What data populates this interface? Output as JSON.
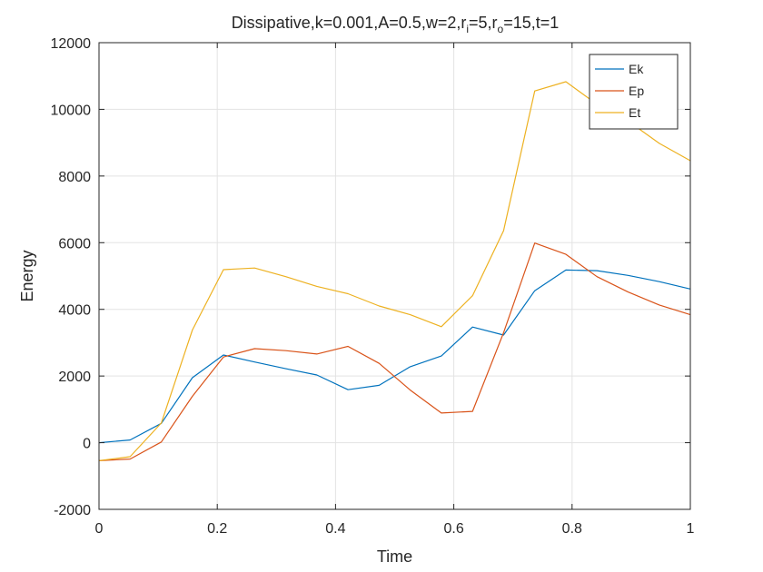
{
  "chart_data": {
    "type": "line",
    "title": "Dissipative,k=0.001,A=0.5,w=2,r_i=5,r_o=15,t=1",
    "title_parts": [
      "Dissipative,k=0.001,A=0.5,w=2,r",
      "i",
      "=5,r",
      "o",
      "=15,t=1"
    ],
    "xlabel": "Time",
    "ylabel": "Energy",
    "xlim": [
      0,
      1
    ],
    "ylim": [
      -2000,
      12000
    ],
    "xticks": [
      "0",
      "0.2",
      "0.4",
      "0.6",
      "0.8",
      "1"
    ],
    "yticks": [
      "-2000",
      "0",
      "2000",
      "4000",
      "6000",
      "8000",
      "10000",
      "12000"
    ],
    "grid": true,
    "legend_position": "top-right",
    "x": [
      0,
      0.0526,
      0.1053,
      0.1579,
      0.2105,
      0.2632,
      0.3158,
      0.3684,
      0.4211,
      0.4737,
      0.5263,
      0.5789,
      0.6316,
      0.6842,
      0.7368,
      0.7895,
      0.8421,
      0.8947,
      0.9474,
      1.0
    ],
    "series": [
      {
        "name": "Ek",
        "color": "#0072BD",
        "values": [
          0,
          80,
          580,
          1950,
          2630,
          2420,
          2220,
          2030,
          1590,
          1720,
          2280,
          2600,
          3470,
          3230,
          4560,
          5180,
          5160,
          5020,
          4830,
          4610
        ]
      },
      {
        "name": "Ep",
        "color": "#D95319",
        "values": [
          -540,
          -490,
          20,
          1390,
          2570,
          2820,
          2760,
          2660,
          2890,
          2380,
          1580,
          890,
          940,
          3300,
          5990,
          5650,
          4980,
          4520,
          4130,
          3840
        ]
      },
      {
        "name": "Et",
        "color": "#EDB120",
        "values": [
          -540,
          -420,
          590,
          3380,
          5190,
          5240,
          4980,
          4690,
          4470,
          4100,
          3840,
          3480,
          4410,
          6360,
          10550,
          10830,
          10150,
          9650,
          8980,
          8460
        ]
      }
    ]
  }
}
